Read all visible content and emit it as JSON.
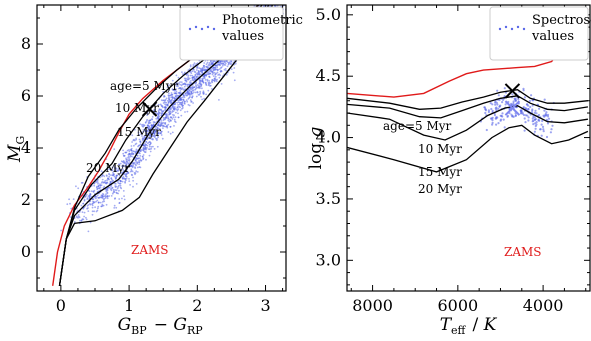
{
  "chart_data": [
    {
      "type": "scatter",
      "panel": "left",
      "xlabel": "G_BP − G_RP",
      "ylabel": "M_G",
      "xlim": [
        -0.35,
        3.3
      ],
      "ylim": [
        9.5,
        -1.5
      ],
      "y_inverted": true,
      "xticks": [
        0,
        1,
        2,
        3
      ],
      "yticks": [
        0,
        2,
        4,
        6,
        8
      ],
      "legend": {
        "label": "Photometric values",
        "placement": "top-right"
      },
      "scatter_color": "#5a68e8",
      "zams": {
        "label": "ZAMS",
        "color": "#e01a1a",
        "points": [
          [
            -0.12,
            -1.3
          ],
          [
            -0.05,
            0.0
          ],
          [
            0.05,
            1.0
          ],
          [
            0.2,
            1.8
          ],
          [
            0.4,
            2.5
          ],
          [
            0.55,
            3.1
          ],
          [
            0.7,
            3.8
          ],
          [
            0.85,
            4.6
          ],
          [
            1.0,
            5.3
          ],
          [
            1.2,
            5.9
          ],
          [
            1.5,
            6.6
          ],
          [
            1.8,
            7.2
          ],
          [
            2.1,
            7.8
          ],
          [
            2.4,
            8.5
          ],
          [
            2.7,
            9.1
          ],
          [
            2.9,
            9.5
          ]
        ]
      },
      "isochrones": [
        {
          "label": "age=5 Myr",
          "points": [
            [
              -0.02,
              -1.3
            ],
            [
              0.08,
              0.5
            ],
            [
              0.2,
              1.1
            ],
            [
              0.5,
              1.2
            ],
            [
              0.9,
              1.6
            ],
            [
              1.15,
              2.1
            ],
            [
              1.35,
              3.0
            ],
            [
              1.6,
              4.0
            ],
            [
              1.85,
              5.0
            ],
            [
              2.1,
              5.8
            ],
            [
              2.4,
              6.8
            ],
            [
              2.7,
              7.8
            ],
            [
              3.0,
              8.8
            ],
            [
              3.1,
              9.5
            ]
          ]
        },
        {
          "label": "10 Myr",
          "points": [
            [
              -0.02,
              -1.3
            ],
            [
              0.08,
              0.5
            ],
            [
              0.2,
              1.4
            ],
            [
              0.5,
              2.2
            ],
            [
              0.85,
              2.8
            ],
            [
              1.05,
              3.5
            ],
            [
              1.3,
              4.6
            ],
            [
              1.6,
              5.6
            ],
            [
              1.9,
              6.4
            ],
            [
              2.2,
              7.1
            ],
            [
              2.5,
              7.8
            ],
            [
              2.8,
              8.6
            ],
            [
              3.05,
              9.5
            ]
          ]
        },
        {
          "label": "15 Myr",
          "points": [
            [
              -0.02,
              -1.3
            ],
            [
              0.08,
              0.5
            ],
            [
              0.2,
              1.6
            ],
            [
              0.45,
              2.6
            ],
            [
              0.75,
              3.4
            ],
            [
              0.95,
              4.3
            ],
            [
              1.2,
              5.2
            ],
            [
              1.5,
              6.1
            ],
            [
              1.8,
              6.8
            ],
            [
              2.1,
              7.4
            ],
            [
              2.4,
              8.0
            ],
            [
              2.7,
              8.8
            ],
            [
              2.95,
              9.5
            ]
          ]
        },
        {
          "label": "20 Myr",
          "points": [
            [
              -0.02,
              -1.3
            ],
            [
              0.08,
              0.5
            ],
            [
              0.2,
              1.7
            ],
            [
              0.4,
              2.9
            ],
            [
              0.65,
              3.8
            ],
            [
              0.85,
              4.7
            ],
            [
              1.1,
              5.5
            ],
            [
              1.4,
              6.3
            ],
            [
              1.7,
              7.0
            ],
            [
              2.0,
              7.6
            ],
            [
              2.3,
              8.2
            ],
            [
              2.6,
              8.9
            ],
            [
              2.9,
              9.5
            ]
          ]
        }
      ],
      "marker": {
        "symbol": "x",
        "color": "#000000",
        "point": [
          1.3,
          5.5
        ]
      }
    },
    {
      "type": "scatter",
      "panel": "right",
      "xlabel": "T_eff / K",
      "ylabel": "log g",
      "xlim": [
        8600,
        2900
      ],
      "ylim": [
        5.08,
        2.75
      ],
      "x_inverted": true,
      "y_inverted": true,
      "xticks": [
        8000,
        6000,
        4000
      ],
      "yticks": [
        3.0,
        3.5,
        4.0,
        4.5,
        5.0
      ],
      "legend": {
        "label": "Spectroscopic values",
        "placement": "top-right"
      },
      "scatter_color": "#5a68e8",
      "zams": {
        "label": "ZAMS",
        "color": "#e01a1a",
        "points": [
          [
            8600,
            4.36
          ],
          [
            7500,
            4.33
          ],
          [
            6800,
            4.36
          ],
          [
            6200,
            4.46
          ],
          [
            5800,
            4.52
          ],
          [
            5400,
            4.55
          ],
          [
            5000,
            4.56
          ],
          [
            4600,
            4.57
          ],
          [
            4200,
            4.58
          ],
          [
            3800,
            4.62
          ],
          [
            3500,
            4.75
          ],
          [
            3200,
            4.92
          ],
          [
            2950,
            5.05
          ]
        ]
      },
      "isochrones": [
        {
          "label": "age=5 Myr",
          "points": [
            [
              8600,
              3.92
            ],
            [
              7500,
              3.82
            ],
            [
              6500,
              3.72
            ],
            [
              5800,
              3.82
            ],
            [
              5200,
              4.0
            ],
            [
              4800,
              4.08
            ],
            [
              4500,
              4.1
            ],
            [
              4200,
              4.02
            ],
            [
              3800,
              3.95
            ],
            [
              3400,
              3.98
            ],
            [
              2950,
              4.05
            ]
          ]
        },
        {
          "label": "10 Myr",
          "points": [
            [
              8600,
              4.2
            ],
            [
              7600,
              4.15
            ],
            [
              6800,
              4.02
            ],
            [
              6300,
              3.98
            ],
            [
              5800,
              4.06
            ],
            [
              5300,
              4.18
            ],
            [
              4900,
              4.24
            ],
            [
              4600,
              4.26
            ],
            [
              4300,
              4.2
            ],
            [
              3900,
              4.13
            ],
            [
              3500,
              4.12
            ],
            [
              2950,
              4.15
            ]
          ]
        },
        {
          "label": "15 Myr",
          "points": [
            [
              8600,
              4.27
            ],
            [
              7600,
              4.24
            ],
            [
              6900,
              4.17
            ],
            [
              6400,
              4.16
            ],
            [
              5900,
              4.22
            ],
            [
              5400,
              4.28
            ],
            [
              5000,
              4.32
            ],
            [
              4600,
              4.34
            ],
            [
              4300,
              4.28
            ],
            [
              3900,
              4.23
            ],
            [
              3500,
              4.22
            ],
            [
              2950,
              4.25
            ]
          ]
        },
        {
          "label": "20 Myr",
          "points": [
            [
              8600,
              4.32
            ],
            [
              7600,
              4.28
            ],
            [
              6900,
              4.23
            ],
            [
              6400,
              4.24
            ],
            [
              5900,
              4.29
            ],
            [
              5400,
              4.33
            ],
            [
              5000,
              4.37
            ],
            [
              4600,
              4.39
            ],
            [
              4300,
              4.32
            ],
            [
              3900,
              4.28
            ],
            [
              3500,
              4.28
            ],
            [
              2950,
              4.3
            ]
          ]
        }
      ],
      "markers": [
        {
          "symbol": "x",
          "color": "#7f87f0",
          "point": [
            4720,
            4.24
          ]
        },
        {
          "symbol": "x",
          "color": "#000000",
          "point": [
            4720,
            4.38
          ]
        }
      ]
    }
  ]
}
